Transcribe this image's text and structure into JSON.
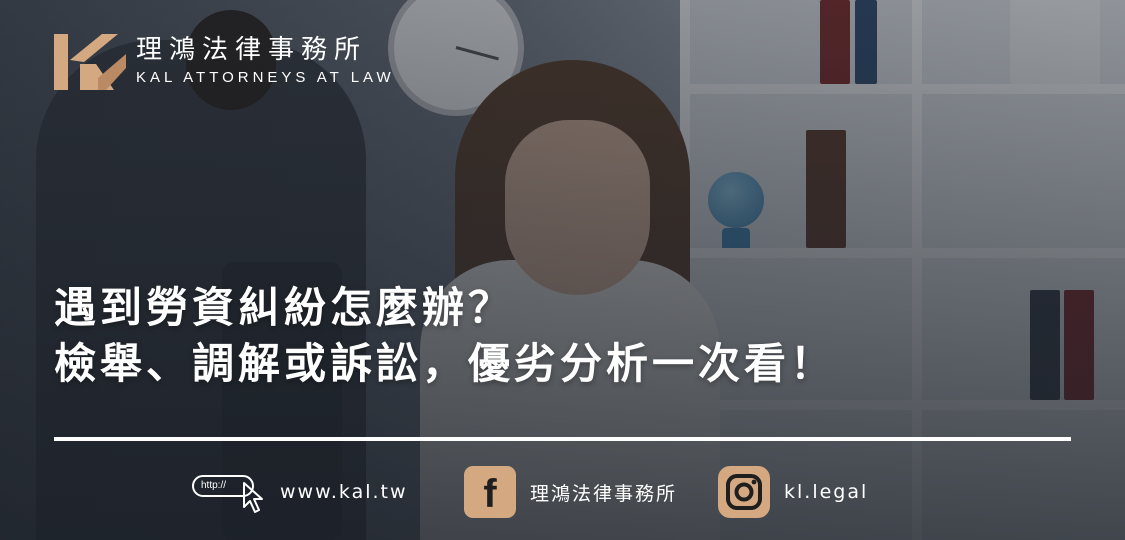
{
  "brand": {
    "name_zh": "理鴻法律事務所",
    "name_en": "KAL ATTORNEYS AT LAW",
    "logo_mark": "KAL-monogram",
    "accent_color": "#d4a981"
  },
  "headline": {
    "line1": "遇到勞資糾紛怎麼辦？",
    "line2": "檢舉、調解或訴訟，優劣分析一次看！"
  },
  "contacts": {
    "website": {
      "icon": "http-cursor-icon",
      "icon_text": "http://",
      "label": "www.kal.tw"
    },
    "facebook": {
      "icon": "facebook-icon",
      "icon_text": "f",
      "label": "理鴻法律事務所"
    },
    "instagram": {
      "icon": "instagram-icon",
      "label": "kl.legal"
    }
  }
}
